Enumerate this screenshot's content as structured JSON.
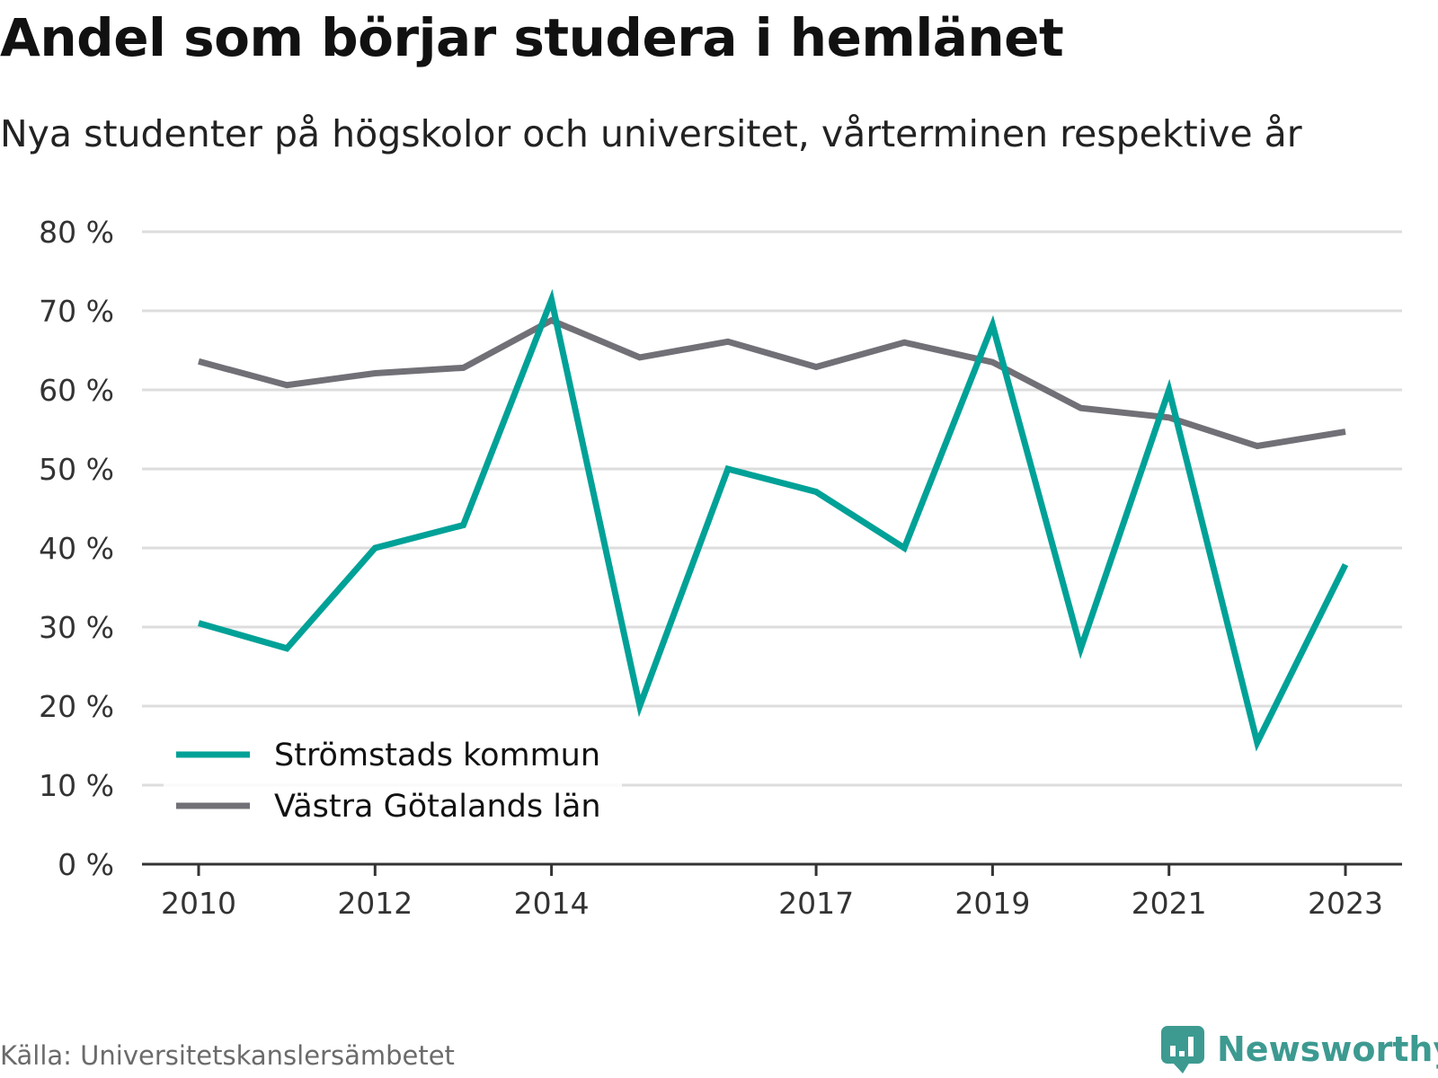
{
  "title": "Andel som börjar studera i hemlänet",
  "subtitle": "Nya studenter på högskolor och universitet, vårterminen respektive år",
  "source": "Källa: Universitetskanslersämbetet",
  "brand": {
    "name": "Newsworthy",
    "icon": "newsworthy-logo-icon",
    "color": "#3d9a91"
  },
  "chart_data": {
    "type": "line",
    "x": [
      2010,
      2011,
      2012,
      2013,
      2014,
      2015,
      2016,
      2017,
      2018,
      2019,
      2020,
      2021,
      2022,
      2023
    ],
    "x_tick_labels": [
      "2010",
      "2012",
      "2014",
      "2017",
      "2019",
      "2021",
      "2023"
    ],
    "y_tick_labels": [
      "0 %",
      "10 %",
      "20 %",
      "30 %",
      "40 %",
      "50 %",
      "60 %",
      "70 %",
      "80 %"
    ],
    "ylim": [
      0,
      80
    ],
    "grid": true,
    "legend_position": "bottom-left",
    "series": [
      {
        "name": "Strömstads kommun",
        "color": "#00a197",
        "values": [
          30.5,
          27.3,
          40.0,
          42.9,
          71.4,
          20.0,
          50.0,
          47.1,
          40.0,
          68.2,
          27.3,
          60.0,
          15.4,
          37.9
        ]
      },
      {
        "name": "Västra Götalands län",
        "color": "#717077",
        "values": [
          63.6,
          60.6,
          62.1,
          62.8,
          68.8,
          64.1,
          66.1,
          62.9,
          66.0,
          63.5,
          57.7,
          56.5,
          52.9,
          54.7
        ]
      }
    ]
  }
}
